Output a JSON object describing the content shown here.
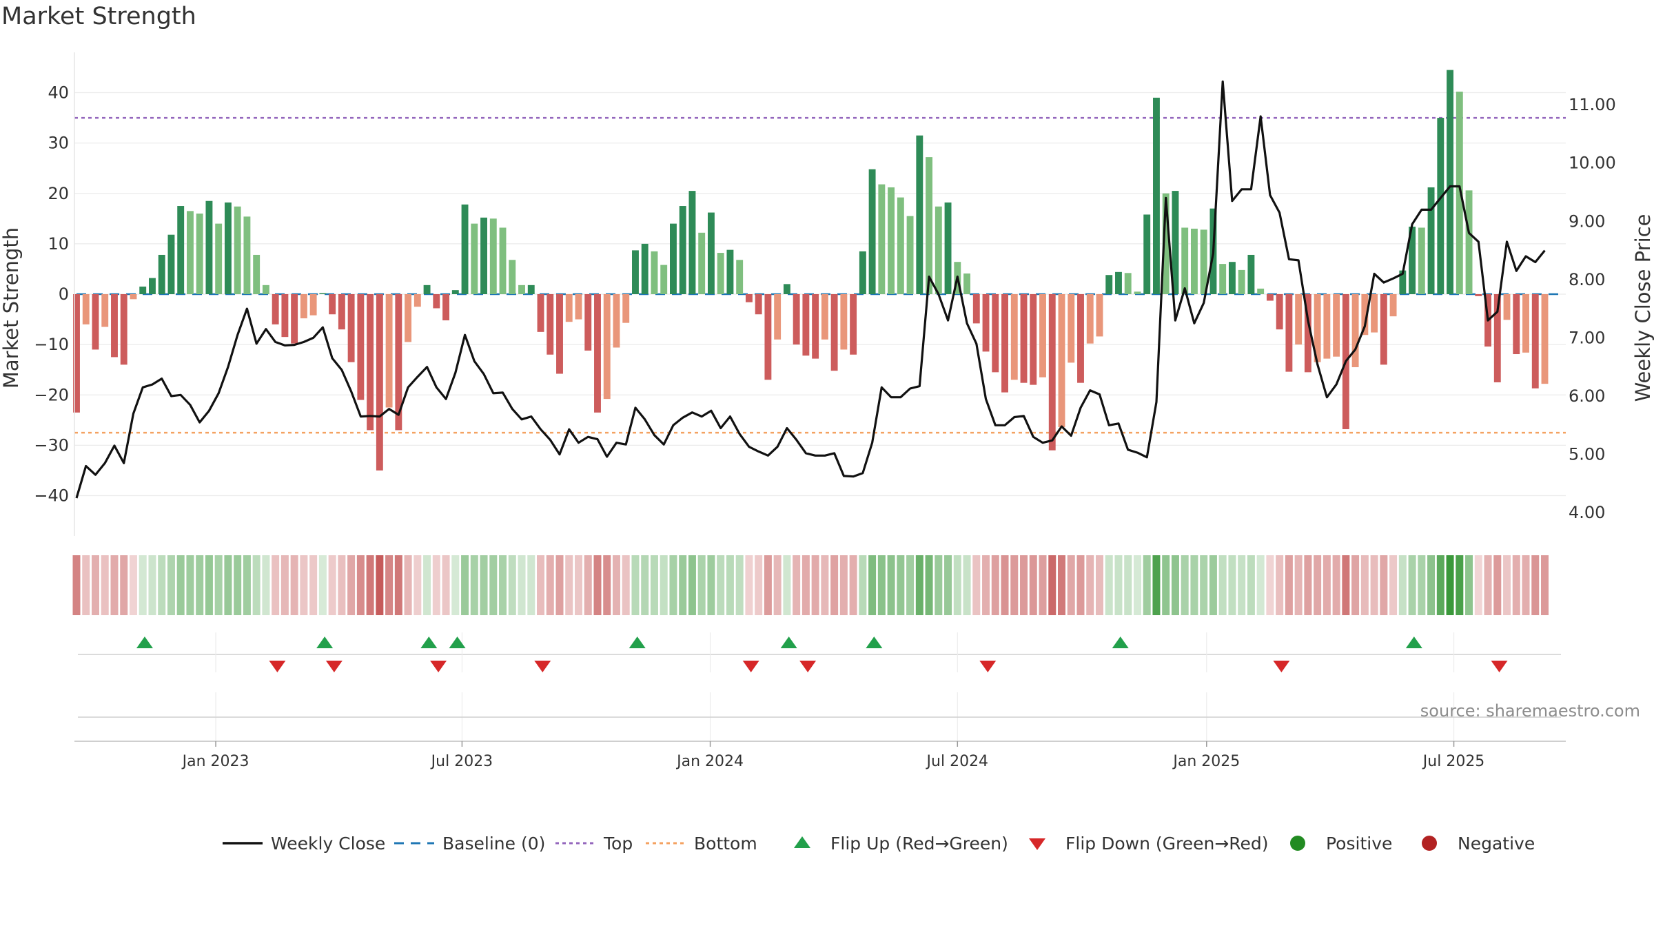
{
  "title": "Market Strength",
  "source": "source: sharemaestro.com",
  "colors": {
    "price_line": "#111111",
    "baseline": "#1f77b4",
    "top": "#9467bd",
    "bottom": "#f4a261",
    "pos_dark": "#2e8b57",
    "pos_light": "#7fbf7f",
    "neg_dark": "#cd5c5c",
    "neg_light": "#e9967a",
    "flip_up": "#22a04b",
    "flip_down": "#d62728",
    "positive": "#228b22",
    "negative": "#b22222"
  },
  "chart_data": {
    "type": "bar",
    "title": "Market Strength",
    "ylabel_left": "Market Strength",
    "ylabel_right": "Weekly Close Price",
    "ylim_left": [
      -48,
      48
    ],
    "ylim_right": [
      3.6,
      11.9
    ],
    "yticks_left": [
      -40,
      -30,
      -20,
      -10,
      0,
      10,
      20,
      30,
      40
    ],
    "yticks_right": [
      4.0,
      5.0,
      6.0,
      7.0,
      8.0,
      9.0,
      10.0,
      11.0
    ],
    "ytick_labels_left": [
      "−40",
      "−30",
      "−20",
      "−10",
      "0",
      "10",
      "20",
      "30",
      "40"
    ],
    "ytick_labels_right": [
      "4.00",
      "5.00",
      "6.00",
      "7.00",
      "8.00",
      "9.00",
      "10.00",
      "11.00"
    ],
    "x_range_weeks": [
      0,
      157
    ],
    "xtick_weeks": [
      14.7,
      40.7,
      66.9,
      93.0,
      119.3,
      145.4
    ],
    "xtick_labels": [
      "Jan 2023",
      "Jul 2023",
      "Jan 2024",
      "Jul 2024",
      "Jan 2025",
      "Jul 2025"
    ],
    "top_line": 35,
    "bottom_line": -27.5,
    "baseline": 0,
    "strength": [
      -23.5,
      -6,
      -11,
      -6.5,
      -12.5,
      -14,
      -1,
      1.5,
      3.2,
      7.8,
      11.8,
      17.5,
      16.5,
      16,
      18.5,
      14,
      18.2,
      17.4,
      15.4,
      7.8,
      1.8,
      -6,
      -8.5,
      -9.8,
      -4.8,
      -4.2,
      0.2,
      -4,
      -7,
      -13.5,
      -21,
      -27,
      -35,
      -22.5,
      -27,
      -9.5,
      -2.5,
      1.8,
      -2.8,
      -5.2,
      0.8,
      17.8,
      14,
      15.2,
      15,
      13.2,
      6.8,
      1.8,
      1.8,
      -7.5,
      -12,
      -15.8,
      -5.5,
      -5,
      -11.2,
      -23.5,
      -20.8,
      -10.6,
      -5.7,
      8.7,
      10,
      8.5,
      5.8,
      14,
      17.5,
      20.5,
      12.2,
      16.2,
      8.2,
      8.8,
      6.8,
      -1.6,
      -4,
      -17,
      -9,
      2,
      -10,
      -12.2,
      -12.8,
      -9,
      -15.2,
      -11,
      -12,
      8.5,
      24.8,
      21.8,
      21.2,
      19.2,
      15.5,
      31.5,
      27.2,
      17.4,
      18.2,
      6.4,
      4.1,
      -5.8,
      -11.4,
      -15.5,
      -19.5,
      -17,
      -17.6,
      -18,
      -16.5,
      -31,
      -26.4,
      -13.6,
      -17.6,
      -9.8,
      -8.4,
      3.8,
      4.4,
      4.2,
      0.5,
      15.8,
      39,
      20,
      20.5,
      13.2,
      13,
      12.8,
      17,
      6,
      6.4,
      4.8,
      7.8,
      1.1,
      -1.3,
      -7,
      -15.4,
      -10,
      -15.5,
      -13.5,
      -12.8,
      -12.4,
      -26.8,
      -14.5,
      -8.1,
      -7.6,
      -14,
      -4.4,
      4.7,
      13.4,
      13.2,
      21.2,
      35,
      44.5,
      40.2,
      20.6,
      -0.4,
      -10.4,
      -17.5,
      -5.1,
      -11.9,
      -11.6,
      -18.7,
      -17.8
    ],
    "weekly_close": [
      4.25,
      4.8,
      4.65,
      4.85,
      5.15,
      4.85,
      5.7,
      6.15,
      6.2,
      6.3,
      6,
      6.02,
      5.85,
      5.55,
      5.75,
      6.05,
      6.5,
      7.05,
      7.5,
      6.9,
      7.15,
      6.93,
      6.87,
      6.88,
      6.93,
      7,
      7.18,
      6.65,
      6.45,
      6.08,
      5.65,
      5.66,
      5.65,
      5.78,
      5.68,
      6.15,
      6.33,
      6.5,
      6.15,
      5.95,
      6.4,
      7.05,
      6.6,
      6.38,
      6.05,
      6.06,
      5.78,
      5.6,
      5.65,
      5.43,
      5.25,
      5,
      5.43,
      5.2,
      5.3,
      5.26,
      4.96,
      5.2,
      5.17,
      5.8,
      5.6,
      5.33,
      5.17,
      5.5,
      5.63,
      5.72,
      5.65,
      5.75,
      5.45,
      5.65,
      5.35,
      5.13,
      5.05,
      4.98,
      5.13,
      5.45,
      5.25,
      5.02,
      4.98,
      4.98,
      5.02,
      4.63,
      4.62,
      4.68,
      5.2,
      6.15,
      5.98,
      5.98,
      6.13,
      6.17,
      8.05,
      7.75,
      7.3,
      8.05,
      7.25,
      6.9,
      5.95,
      5.5,
      5.5,
      5.64,
      5.66,
      5.3,
      5.2,
      5.24,
      5.48,
      5.32,
      5.8,
      6.1,
      6.03,
      5.5,
      5.53,
      5.08,
      5.03,
      4.95,
      5.9,
      9.4,
      7.3,
      7.85,
      7.25,
      7.6,
      8.45,
      11.4,
      9.35,
      9.55,
      9.55,
      10.8,
      9.45,
      9.15,
      8.35,
      8.33,
      7.3,
      6.55,
      5.98,
      6.2,
      6.6,
      6.8,
      7.2,
      8.1,
      7.95,
      8.02,
      8.1,
      8.95,
      9.2,
      9.2,
      9.4,
      9.6,
      9.6,
      8.8,
      8.65,
      7.3,
      7.45,
      8.65,
      8.15,
      8.4,
      8.3,
      8.5
    ],
    "flip_up_weeks": [
      7.2,
      26.2,
      37.2,
      40.2,
      59.2,
      75.2,
      84.2,
      110.2,
      141.2
    ],
    "flip_down_weeks": [
      21.2,
      27.2,
      38.2,
      49.2,
      71.2,
      77.2,
      96.2,
      127.2,
      150.2
    ],
    "legend": [
      "Weekly Close",
      "Baseline (0)",
      "Top",
      "Bottom",
      "Flip Up (Red→Green)",
      "Flip Down (Green→Red)",
      "Positive",
      "Negative"
    ]
  }
}
